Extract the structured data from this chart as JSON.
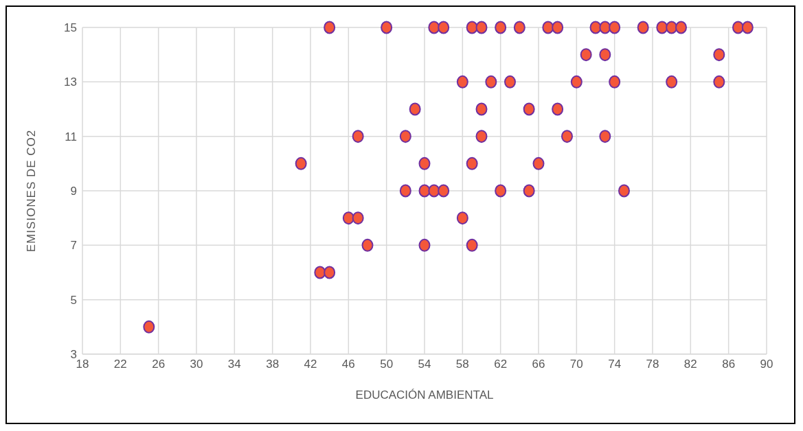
{
  "chart_data": {
    "type": "scatter",
    "xlabel": "EDUCACIÓN AMBIENTAL",
    "ylabel": "EMISIONES DE CO2",
    "xlim": [
      18,
      90
    ],
    "xticks": [
      18,
      22,
      26,
      30,
      34,
      38,
      42,
      46,
      50,
      54,
      58,
      62,
      66,
      70,
      74,
      78,
      82,
      86,
      90
    ],
    "ylim": [
      3,
      15
    ],
    "yticks": [
      3,
      5,
      7,
      9,
      11,
      13,
      15
    ],
    "grid": true,
    "legend": false,
    "marker": "circle",
    "series": [
      {
        "color": "#f4573a",
        "x": [
          44,
          50,
          55,
          56,
          59,
          60,
          62,
          64,
          67,
          68,
          72,
          73,
          74,
          77,
          79,
          80,
          81,
          87,
          88,
          71,
          73,
          85,
          58,
          61,
          63,
          70,
          74,
          80,
          85,
          53,
          60,
          65,
          68,
          47,
          52,
          60,
          69,
          73,
          41,
          54,
          59,
          66,
          52,
          54,
          55,
          56,
          62,
          65,
          75,
          46,
          47,
          58,
          48,
          54,
          59,
          43,
          44,
          25
        ],
        "values": [
          15,
          15,
          15,
          15,
          15,
          15,
          15,
          15,
          15,
          15,
          15,
          15,
          15,
          15,
          15,
          15,
          15,
          15,
          15,
          14,
          14,
          14,
          13,
          13,
          13,
          13,
          13,
          13,
          13,
          12,
          12,
          12,
          12,
          11,
          11,
          11,
          11,
          11,
          10,
          10,
          10,
          10,
          9,
          9,
          9,
          9,
          9,
          9,
          9,
          8,
          8,
          8,
          7,
          7,
          7,
          6,
          6,
          4
        ]
      }
    ]
  }
}
